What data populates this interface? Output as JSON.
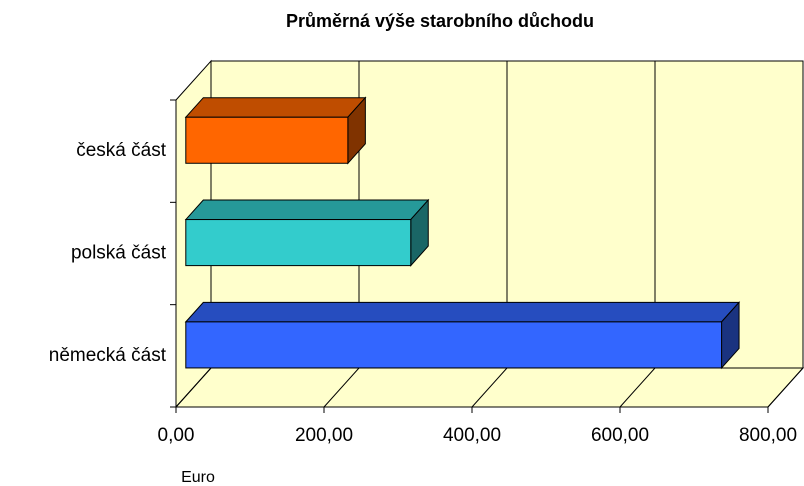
{
  "chart_data": {
    "type": "bar3d_horizontal",
    "title": "Průměrná výše starobního důchodu",
    "xlabel": "Euro",
    "categories": [
      "česká část",
      "polská část",
      "německá část"
    ],
    "series": [
      {
        "name": null,
        "colors": [
          "#ff6600",
          "#33cccc",
          "#3366ff"
        ],
        "values": [
          219,
          304,
          724
        ]
      }
    ],
    "xlim": [
      0,
      800
    ],
    "xticks": [
      {
        "value": 0,
        "label": "0,00"
      },
      {
        "value": 200,
        "label": "200,00"
      },
      {
        "value": 400,
        "label": "400,00"
      },
      {
        "value": 600,
        "label": "600,00"
      },
      {
        "value": 800,
        "label": "800,00"
      }
    ],
    "grid": true,
    "wall_color": "#ffffcc"
  }
}
